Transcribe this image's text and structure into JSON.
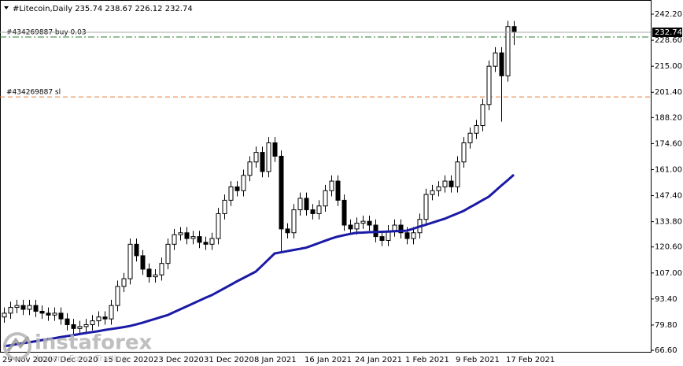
{
  "chart_data": {
    "type": "candlestick",
    "title": "#Litecoin,Daily 235.74 238.67 226.12 232.74",
    "categories": [
      "29 Nov 2020",
      null,
      null,
      null,
      null,
      null,
      null,
      null,
      "7 Dec 2020",
      null,
      null,
      null,
      null,
      null,
      null,
      null,
      "15 Dec 2020",
      null,
      null,
      null,
      null,
      null,
      null,
      null,
      "23 Dec 2020",
      null,
      null,
      null,
      null,
      null,
      null,
      null,
      "31 Dec 2020",
      null,
      null,
      null,
      null,
      null,
      null,
      null,
      "8 Jan 2021",
      null,
      null,
      null,
      null,
      null,
      null,
      null,
      "16 Jan 2021",
      null,
      null,
      null,
      null,
      null,
      null,
      null,
      "24 Jan 2021",
      null,
      null,
      null,
      null,
      null,
      null,
      null,
      "1 Feb 2021",
      null,
      null,
      null,
      null,
      null,
      null,
      null,
      "9 Feb 2021",
      null,
      null,
      null,
      null,
      null,
      null,
      null,
      "17 Feb 2021",
      null
    ],
    "open": [
      84,
      86,
      89,
      90,
      88,
      90,
      87,
      86,
      85,
      86,
      83,
      80,
      78,
      79,
      80,
      82,
      84,
      83,
      90,
      100,
      104,
      122,
      116,
      109,
      105,
      106,
      112,
      122,
      127,
      128,
      125,
      126,
      123,
      122,
      125,
      138,
      145,
      152,
      150,
      158,
      165,
      170,
      160,
      175,
      168,
      130,
      128,
      140,
      146,
      140,
      138,
      142,
      150,
      155,
      145,
      132,
      130,
      133,
      134,
      132,
      126,
      124,
      129,
      132,
      128,
      125,
      128,
      135,
      148,
      150,
      152,
      155,
      152,
      165,
      175,
      180,
      184,
      195,
      215,
      222,
      210,
      235.74
    ],
    "high": [
      89,
      92,
      93,
      93,
      93,
      93,
      90,
      89,
      89,
      89,
      86,
      83,
      82,
      83,
      85,
      87,
      87,
      93,
      103,
      107,
      125,
      125,
      119,
      112,
      109,
      115,
      125,
      130,
      131,
      131,
      129,
      129,
      126,
      128,
      141,
      148,
      155,
      155,
      161,
      168,
      173,
      173,
      178,
      178,
      171,
      133,
      143,
      149,
      149,
      143,
      145,
      153,
      158,
      158,
      148,
      135,
      136,
      137,
      137,
      135,
      129,
      132,
      135,
      135,
      131,
      131,
      138,
      151,
      153,
      155,
      158,
      158,
      168,
      178,
      183,
      187,
      198,
      218,
      225,
      225,
      238.7,
      238.67
    ],
    "low": [
      81,
      83,
      86,
      85,
      85,
      84,
      83,
      82,
      82,
      80,
      77,
      75,
      75,
      76,
      77,
      79,
      80,
      80,
      87,
      97,
      101,
      113,
      106,
      102,
      102,
      103,
      109,
      119,
      124,
      122,
      122,
      120,
      119,
      119,
      122,
      135,
      142,
      147,
      147,
      155,
      162,
      157,
      157,
      165,
      118,
      125,
      125,
      137,
      137,
      135,
      135,
      139,
      147,
      142,
      129,
      127,
      127,
      130,
      129,
      123,
      121,
      121,
      126,
      125,
      122,
      122,
      125,
      132,
      145,
      147,
      149,
      149,
      149,
      162,
      172,
      177,
      181,
      192,
      212,
      186,
      207,
      226.12
    ],
    "close": [
      86,
      89,
      90,
      88,
      90,
      87,
      86,
      85,
      86,
      83,
      80,
      78,
      79,
      80,
      82,
      84,
      83,
      90,
      100,
      104,
      122,
      116,
      109,
      105,
      106,
      112,
      122,
      127,
      128,
      125,
      126,
      123,
      122,
      125,
      138,
      145,
      152,
      150,
      158,
      165,
      170,
      160,
      175,
      168,
      130,
      128,
      140,
      146,
      140,
      138,
      142,
      150,
      155,
      145,
      132,
      130,
      133,
      134,
      132,
      126,
      124,
      129,
      132,
      128,
      125,
      128,
      135,
      148,
      150,
      152,
      155,
      152,
      165,
      175,
      180,
      184,
      195,
      215,
      222,
      210,
      235.74,
      232.74
    ],
    "up_color": "#ffffff",
    "down_color": "#000000",
    "ma": {
      "color": "#1a1aa6",
      "values": [
        68.7,
        69.2,
        69.8,
        70.3,
        70.8,
        71.3,
        71.9,
        72.4,
        72.9,
        73.5,
        74.0,
        74.5,
        75.1,
        75.6,
        76.1,
        76.6,
        77.2,
        77.7,
        78.2,
        78.7,
        79.3,
        80.1,
        81.0,
        82.0,
        83.0,
        84.0,
        85.0,
        86.5,
        88.0,
        89.5,
        91.0,
        92.5,
        94.0,
        95.4,
        97.2,
        99.0,
        100.8,
        102.6,
        104.3,
        106.0,
        107.7,
        110.8,
        114.0,
        117.2,
        117.8,
        118.4,
        119.0,
        119.6,
        120.2,
        121.4,
        122.6,
        123.8,
        125.0,
        126.0,
        126.7,
        127.4,
        128.0,
        128.1,
        128.3,
        128.4,
        128.5,
        128.6,
        128.8,
        128.9,
        129.1,
        130.1,
        131.2,
        132.2,
        133.2,
        134.3,
        135.3,
        136.7,
        138.0,
        139.4,
        141.3,
        143.1,
        145.0,
        146.8,
        149.7,
        152.6,
        155.4,
        158.3
      ]
    },
    "levels": [
      {
        "label": "#434269887 buy 0.03",
        "value": 230.3,
        "color": "#2e7d32"
      },
      {
        "label": "#434269887 sl",
        "value": 199.0,
        "color": "#e07b39"
      }
    ],
    "ylim": [
      65.8,
      247.55
    ],
    "yticks": [
      {
        "value": 242.2,
        "label": "242.20"
      },
      {
        "value": 228.6,
        "label": "228.60"
      },
      {
        "value": 215,
        "label": "215.00"
      },
      {
        "value": 201.4,
        "label": "201.40"
      },
      {
        "value": 188.2,
        "label": "188.20"
      },
      {
        "value": 174.6,
        "label": "174.60"
      },
      {
        "value": 161,
        "label": "161.00"
      },
      {
        "value": 147.4,
        "label": "147.40"
      },
      {
        "value": 133.8,
        "label": "133.80"
      },
      {
        "value": 120.6,
        "label": "120.60"
      },
      {
        "value": 107,
        "label": "107.00"
      },
      {
        "value": 93.4,
        "label": "93.40"
      },
      {
        "value": 79.8,
        "label": "79.80"
      },
      {
        "value": 66.6,
        "label": "66.60"
      }
    ],
    "watermark": {
      "name": "instaforex",
      "tagline": "Instant Forex Trading"
    }
  }
}
